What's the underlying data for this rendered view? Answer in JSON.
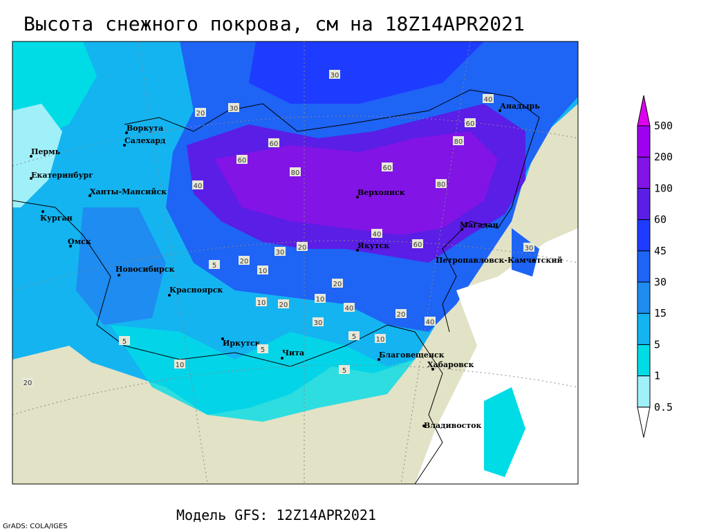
{
  "header": {
    "title": "Высота снежного покрова, см на 18Z14APR2021"
  },
  "footer": {
    "model": "Модель GFS: 12Z14APR2021",
    "credit": "GrADS: COLA/IGES"
  },
  "map": {
    "cities": [
      "Воркута",
      "Салехард",
      "Пермь",
      "Екатеринбург",
      "Ханты-Мансийск",
      "Курган",
      "Омск",
      "Новосибирск",
      "Красноярск",
      "Иркутск",
      "Чита",
      "Благовещенск",
      "Хабаровск",
      "Владивосток",
      "Верхоянск",
      "Якутск",
      "Магадан",
      "Петропавловск-Камчатский",
      "Анадырь"
    ],
    "contour_labels": [
      "30",
      "30",
      "20",
      "40",
      "60",
      "60",
      "80",
      "60",
      "80",
      "60",
      "80",
      "40",
      "40",
      "30",
      "20",
      "10",
      "20",
      "10",
      "5",
      "40",
      "20",
      "20",
      "10",
      "5",
      "5",
      "10",
      "20",
      "5",
      "5",
      "40",
      "60",
      "30",
      "30",
      "10",
      "20"
    ]
  },
  "legend": {
    "levels": [
      0.5,
      1,
      5,
      15,
      30,
      45,
      60,
      100,
      200,
      500
    ],
    "colors": [
      "#ffffff",
      "#a0f0fa",
      "#00dce6",
      "#14b4f0",
      "#1e8cf0",
      "#1e64f5",
      "#1e3cff",
      "#5a1ee6",
      "#8214e6",
      "#a000f0",
      "#e000f0"
    ]
  }
}
